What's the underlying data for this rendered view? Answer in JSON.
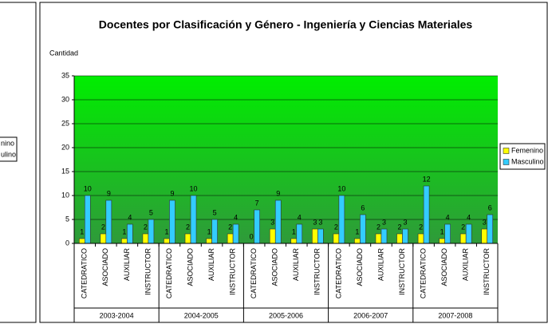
{
  "left_panel": {
    "legend": [
      "nino",
      "ulino"
    ]
  },
  "chart_data": {
    "type": "bar",
    "title": "Docentes por Clasificación y Género - Ingeniería y Ciencias Materiales",
    "y_label": "Cantidad",
    "categories": [
      "CATEDRATICO",
      "ASOCIADO",
      "AUXILIAR",
      "INSTRUCTOR",
      "CATEDRATICO",
      "ASOCIADO",
      "AUXILIAR",
      "INSTRUCTOR",
      "CATEDRATICO",
      "ASOCIADO",
      "AUXILIAR",
      "INSTRUCTOR",
      "CATEDRATICO",
      "ASOCIADO",
      "AUXILIAR",
      "INSTRUCTOR",
      "CATEDRATICO",
      "ASOCIADO",
      "AUXILIAR",
      "INSTRUCTOR"
    ],
    "groups": [
      "2003-2004",
      "2004-2005",
      "2005-2006",
      "2006-2007",
      "2007-2008"
    ],
    "series": [
      {
        "name": "Femenino",
        "color": "#ffff00",
        "values": [
          1,
          2,
          1,
          2,
          1,
          2,
          1,
          2,
          0,
          3,
          1,
          3,
          2,
          1,
          2,
          2,
          2,
          1,
          2,
          3
        ]
      },
      {
        "name": "Masculino",
        "color": "#33ccff",
        "values": [
          10,
          9,
          4,
          5,
          9,
          10,
          5,
          4,
          7,
          9,
          4,
          3,
          10,
          6,
          3,
          3,
          12,
          4,
          4,
          6
        ]
      }
    ],
    "ylim": [
      0,
      35
    ],
    "yticks": [
      0,
      5,
      10,
      15,
      20,
      25,
      30,
      35
    ],
    "grid": true,
    "legend": "right"
  }
}
